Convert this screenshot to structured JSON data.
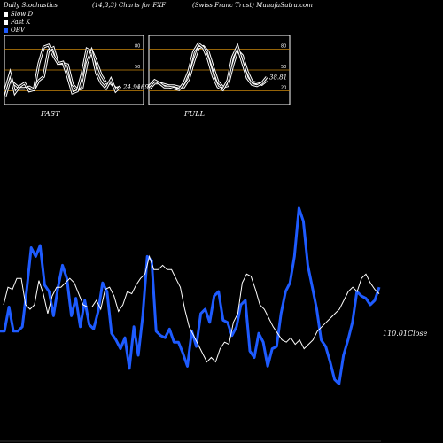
{
  "header": {
    "left": "Daily Stochastics",
    "mid": "(14,3,3) Charts for FXF",
    "right": "(Swiss Franc Trust) MunafaSutra.com"
  },
  "legend": [
    {
      "label": "Slow  D",
      "color": "#ffffff"
    },
    {
      "label": "Fast K",
      "color": "#ffffff"
    },
    {
      "label": "OBV",
      "color": "#1e5bff"
    }
  ],
  "colors": {
    "obv": "#1e5bff",
    "price": "#ffffff",
    "level": "#c8860a"
  },
  "chart_data": [
    {
      "type": "line",
      "panel_label": "FAST",
      "yticks": [
        80,
        50,
        20
      ],
      "ylim": [
        0,
        100
      ],
      "last_value_label": "24.9169",
      "series": [
        {
          "name": "Slow  D",
          "values": [
            10,
            35,
            28,
            22,
            22,
            24,
            20,
            34,
            40,
            80,
            84,
            60,
            60,
            58,
            28,
            20,
            22,
            60,
            80,
            62,
            42,
            30,
            30,
            22,
            24
          ]
        },
        {
          "name": "Fast K",
          "values": [
            20,
            45,
            15,
            25,
            30,
            18,
            20,
            60,
            85,
            88,
            72,
            60,
            62,
            40,
            15,
            18,
            45,
            82,
            78,
            45,
            30,
            22,
            36,
            18,
            25
          ]
        }
      ]
    },
    {
      "type": "line",
      "panel_label": "FULL",
      "yticks": [
        80,
        50,
        20
      ],
      "ylim": [
        0,
        100
      ],
      "last_value_label": "38.81",
      "series": [
        {
          "name": "Slow  D",
          "values": [
            22,
            30,
            30,
            28,
            26,
            26,
            24,
            24,
            36,
            62,
            84,
            86,
            78,
            54,
            32,
            24,
            26,
            56,
            80,
            72,
            48,
            32,
            30,
            28,
            34
          ]
        },
        {
          "name": "Fast K",
          "values": [
            26,
            34,
            30,
            24,
            24,
            22,
            20,
            30,
            48,
            78,
            90,
            84,
            66,
            40,
            24,
            20,
            34,
            70,
            86,
            62,
            38,
            28,
            26,
            30,
            39
          ]
        }
      ]
    },
    {
      "type": "line",
      "close_label": "110.01Close",
      "ylim": [
        0,
        100
      ],
      "series": [
        {
          "name": "OBV",
          "values": [
            38,
            38,
            49,
            38,
            38,
            40,
            57,
            76,
            72,
            77,
            59,
            56,
            45,
            58,
            68,
            62,
            45,
            53,
            40,
            52,
            41,
            39,
            47,
            60,
            56,
            37,
            34,
            30,
            35,
            21,
            40,
            27,
            45,
            72,
            70,
            38,
            36,
            35,
            39,
            33,
            33,
            28,
            22,
            38,
            31,
            46,
            48,
            42,
            54,
            56,
            43,
            42,
            36,
            40,
            50,
            52,
            29,
            26,
            37,
            33,
            22,
            30,
            31,
            46,
            56,
            60,
            72,
            94,
            88,
            68,
            58,
            48,
            34,
            31,
            24,
            16,
            14,
            27,
            34,
            42,
            56,
            54,
            53,
            50,
            52,
            58
          ]
        },
        {
          "name": "Close",
          "values": [
            50,
            58,
            57,
            62,
            62,
            50,
            48,
            50,
            61,
            55,
            46,
            54,
            58,
            58,
            60,
            62,
            60,
            55,
            50,
            49,
            49,
            52,
            48,
            57,
            58,
            54,
            47,
            50,
            56,
            55,
            59,
            62,
            64,
            72,
            66,
            66,
            68,
            66,
            66,
            62,
            58,
            48,
            40,
            36,
            32,
            28,
            24,
            26,
            24,
            30,
            33,
            32,
            42,
            46,
            60,
            64,
            63,
            57,
            50,
            48,
            44,
            40,
            37,
            34,
            33,
            35,
            32,
            34,
            30,
            32,
            34,
            38,
            40,
            42,
            44,
            46,
            48,
            52,
            56,
            58,
            56,
            62,
            64,
            60,
            57,
            55
          ]
        }
      ]
    }
  ]
}
